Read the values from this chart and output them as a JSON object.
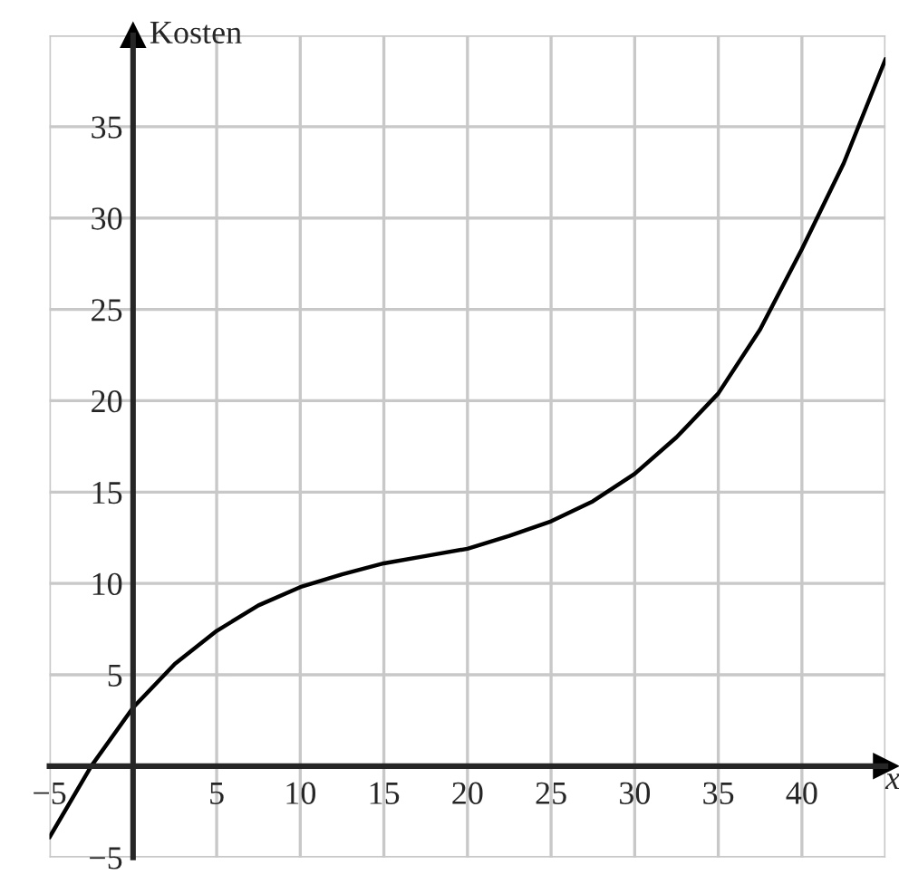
{
  "chart_data": {
    "type": "line",
    "xlabel": "x",
    "ylabel": "Kosten",
    "series": [
      {
        "color": "#000000",
        "x": [
          -5,
          -2.5,
          0,
          2.5,
          5,
          7.5,
          10,
          12.5,
          15,
          17.5,
          20,
          22.5,
          25,
          27.5,
          30,
          32.5,
          35,
          37.5,
          40,
          42.5,
          45
        ],
        "values": [
          -3.9,
          0,
          3.2,
          5.6,
          7.4,
          8.8,
          9.8,
          10.5,
          11.1,
          11.5,
          11.9,
          12.6,
          13.4,
          14.5,
          16.0,
          18.0,
          20.4,
          23.9,
          28.3,
          33.0,
          38.7
        ]
      }
    ],
    "xlim": [
      -5,
      45
    ],
    "ylim": [
      -5,
      40
    ],
    "xticks": [
      -5,
      5,
      10,
      15,
      20,
      25,
      30,
      35,
      40
    ],
    "yticks": [
      -5,
      5,
      10,
      15,
      20,
      25,
      30,
      35
    ],
    "grid": true,
    "marker": "none",
    "line_style": "solid"
  }
}
